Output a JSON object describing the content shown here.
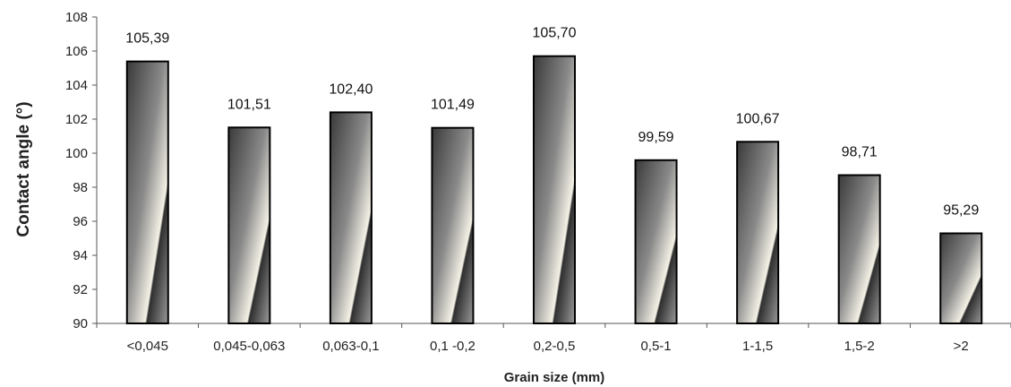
{
  "chart_data": {
    "type": "bar",
    "title": "",
    "xlabel": "Grain size (mm)",
    "ylabel": "Contact angle (°)",
    "ylim": [
      90,
      108
    ],
    "yticks": [
      90,
      92,
      94,
      96,
      98,
      100,
      102,
      104,
      106,
      108
    ],
    "categories": [
      "<0,045",
      "0,045-0,063",
      "0,063-0,1",
      "0,1 -0,2",
      "0,2-0,5",
      "0,5-1",
      "1-1,5",
      "1,5-2",
      ">2"
    ],
    "values": [
      105.39,
      101.51,
      102.4,
      101.49,
      105.7,
      99.59,
      100.67,
      98.71,
      95.29
    ],
    "value_labels": [
      "105,39",
      "101,51",
      "102,40",
      "101,49",
      "105,70",
      "99,59",
      "100,67",
      "98,71",
      "95,29"
    ],
    "grid": false,
    "legend": "none",
    "colors": {
      "bar_dark": "#3a3a3a",
      "bar_light": "#f4f1e6",
      "outline": "#000000",
      "axis": "#555555"
    }
  }
}
